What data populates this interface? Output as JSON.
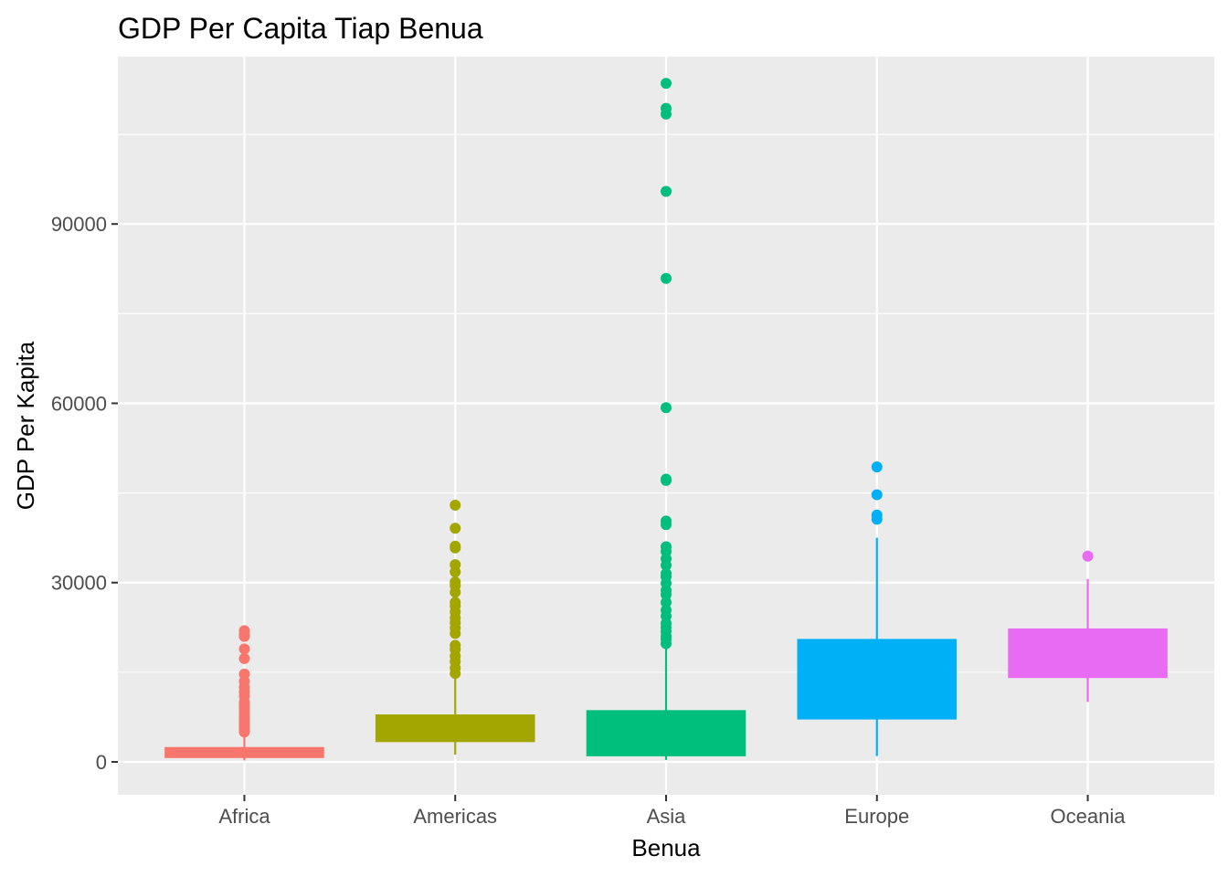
{
  "chart_data": {
    "type": "boxplot",
    "title": "GDP Per Capita Tiap Benua",
    "xlabel": "Benua",
    "ylabel": "GDP Per Kapita",
    "ylim": [
      -5500,
      118000
    ],
    "y_ticks": [
      0,
      30000,
      60000,
      90000
    ],
    "y_tick_labels": [
      "0",
      "30000",
      "60000",
      "90000"
    ],
    "y_minor_ticks": [
      15000,
      45000,
      75000,
      105000
    ],
    "grid": true,
    "background": "#ebebeb",
    "categories": [
      "Africa",
      "Americas",
      "Asia",
      "Europe",
      "Oceania"
    ],
    "boxes": [
      {
        "category": "Africa",
        "color": "#f8766d",
        "whisker_low": 241,
        "q1": 761,
        "median": 1192,
        "q3": 2377,
        "whisker_high": 4850,
        "outliers": [
          5000,
          5200,
          5500,
          5800,
          6200,
          6500,
          7000,
          7500,
          8000,
          8500,
          9000,
          9500,
          10000,
          11000,
          11700,
          12500,
          13500,
          14700,
          17300,
          18900,
          21000,
          21300,
          21951
        ]
      },
      {
        "category": "Americas",
        "color": "#a3a500",
        "whisker_low": 1202,
        "q1": 3428,
        "median": 5466,
        "q3": 7830,
        "whisker_high": 14200,
        "outliers": [
          14800,
          15700,
          16800,
          17700,
          18800,
          19500,
          21500,
          22400,
          23300,
          24100,
          25100,
          26100,
          26700,
          28400,
          29500,
          30100,
          31800,
          33000,
          35800,
          36100,
          39100,
          42952
        ]
      },
      {
        "category": "Asia",
        "color": "#00bf7d",
        "whisker_low": 331,
        "q1": 1057,
        "median": 2647,
        "q3": 8549,
        "whisker_high": 19400,
        "outliers": [
          19800,
          20500,
          21000,
          21800,
          22500,
          23200,
          24400,
          25400,
          26700,
          28000,
          28700,
          29900,
          31000,
          31500,
          32900,
          34000,
          35200,
          36000,
          39700,
          40300,
          47100,
          47300,
          59265,
          80894,
          95458,
          108382,
          109348,
          113523
        ]
      },
      {
        "category": "Europe",
        "color": "#00b0f6",
        "whisker_low": 974,
        "q1": 7213,
        "median": 12082,
        "q3": 20461,
        "whisker_high": 37500,
        "outliers": [
          40600,
          41300,
          44700,
          49357
        ]
      },
      {
        "category": "Oceania",
        "color": "#e76bf3",
        "whisker_low": 10040,
        "q1": 14142,
        "median": 17983,
        "q3": 22214,
        "whisker_high": 30600,
        "outliers": [
          34435
        ]
      }
    ]
  }
}
